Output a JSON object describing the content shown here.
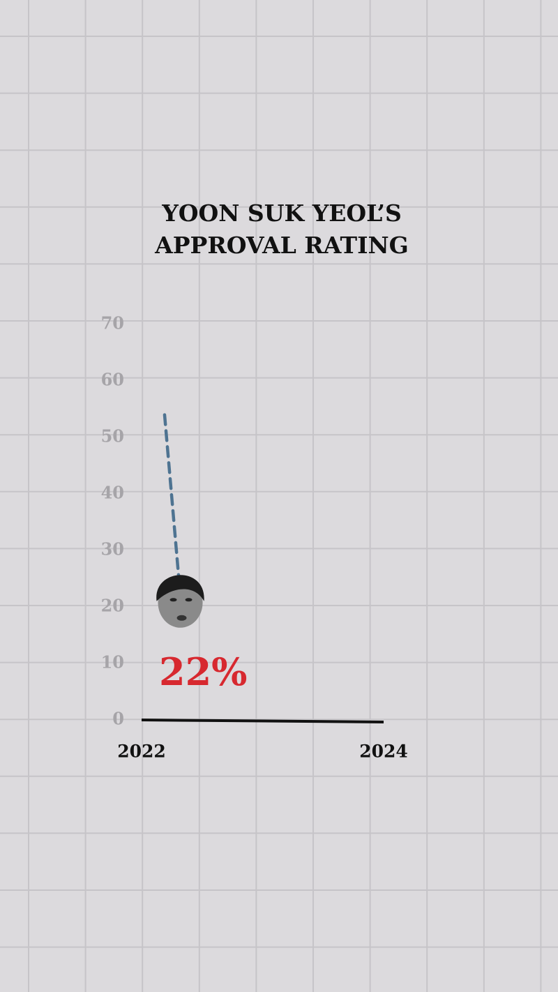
{
  "chart_data": {
    "type": "line",
    "title": [
      "YOON SUK YEOL’S",
      "APPROVAL RATING"
    ],
    "series": [
      {
        "color": "#4e7391",
        "x": [
          2022.19,
          2022.32
        ],
        "values": [
          54,
          22
        ],
        "value_labels": [
          null,
          "22%"
        ]
      }
    ],
    "value_label_color": "#d7282f",
    "xlim": [
      2022,
      2024
    ],
    "xticks": [
      2022,
      2024
    ],
    "ylim": [
      0,
      70
    ],
    "yticks": [
      0,
      10,
      20,
      30,
      40,
      50,
      60,
      70
    ]
  }
}
